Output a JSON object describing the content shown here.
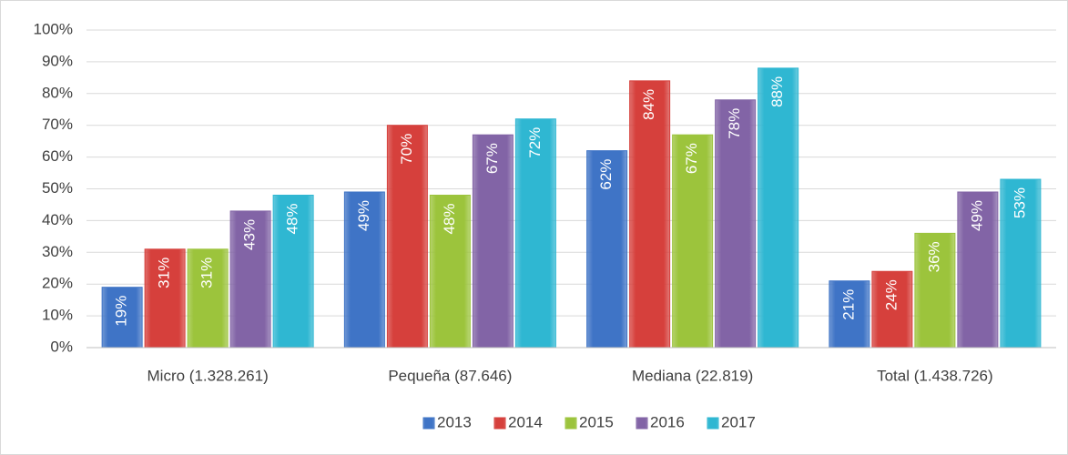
{
  "chart_data": {
    "type": "bar",
    "categories": [
      "Micro (1.328.261)",
      "Pequeña (87.646)",
      "Mediana (22.819)",
      "Total (1.438.726)"
    ],
    "series": [
      {
        "name": "2013",
        "color": "#3f74c6",
        "values": [
          19,
          49,
          62,
          21
        ],
        "value_labels": [
          "19%",
          "49%",
          "62%",
          "21%"
        ]
      },
      {
        "name": "2014",
        "color": "#d6403c",
        "values": [
          31,
          70,
          84,
          24
        ],
        "value_labels": [
          "31%",
          "70%",
          "84%",
          "24%"
        ]
      },
      {
        "name": "2015",
        "color": "#9cc43c",
        "values": [
          31,
          48,
          67,
          36
        ],
        "value_labels": [
          "31%",
          "48%",
          "67%",
          "36%"
        ]
      },
      {
        "name": "2016",
        "color": "#8264a6",
        "values": [
          43,
          67,
          78,
          49
        ],
        "value_labels": [
          "43%",
          "67%",
          "78%",
          "49%"
        ]
      },
      {
        "name": "2017",
        "color": "#2fb7d2",
        "values": [
          48,
          72,
          88,
          53
        ],
        "value_labels": [
          "48%",
          "72%",
          "88%",
          "53%"
        ]
      }
    ],
    "ylim": [
      0,
      100
    ],
    "yticks": [
      {
        "value": 0,
        "label": "0%"
      },
      {
        "value": 10,
        "label": "10%"
      },
      {
        "value": 20,
        "label": "20%"
      },
      {
        "value": 30,
        "label": "30%"
      },
      {
        "value": 40,
        "label": "40%"
      },
      {
        "value": 50,
        "label": "50%"
      },
      {
        "value": 60,
        "label": "60%"
      },
      {
        "value": 70,
        "label": "70%"
      },
      {
        "value": 80,
        "label": "80%"
      },
      {
        "value": 90,
        "label": "90%"
      },
      {
        "value": 100,
        "label": "100%"
      }
    ],
    "grid": true,
    "legend": "bottom"
  }
}
